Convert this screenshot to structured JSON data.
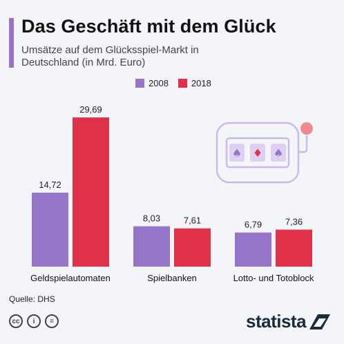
{
  "header": {
    "title": "Das Geschäft mit dem Glück",
    "subtitle": "Umsätze auf dem Glücksspiel-Markt in Deutschland (in Mrd. Euro)"
  },
  "footer": {
    "source": "Quelle: DHS",
    "brand": "statista"
  },
  "icons": [
    "creative-commons-icon",
    "attribution-icon",
    "no-derivatives-icon",
    "statista-logo-icon",
    "slot-machine-icon"
  ],
  "colors": {
    "2008": "#9574c9",
    "2018": "#e0304a",
    "accent_bar": "#9b72c9"
  },
  "chart_data": {
    "type": "bar",
    "categories": [
      "Geldspielautomaten",
      "Spielbanken",
      "Lotto- und Totoblock"
    ],
    "series": [
      {
        "name": "2008",
        "values": [
          14.72,
          8.03,
          6.79
        ]
      },
      {
        "name": "2018",
        "values": [
          29.69,
          7.61,
          7.36
        ]
      }
    ],
    "value_labels": [
      [
        "14,72",
        "8,03",
        "6,79"
      ],
      [
        "29,69",
        "7,61",
        "7,36"
      ]
    ],
    "ylim": [
      0,
      29.69
    ],
    "legend": "top-center",
    "grid": false
  }
}
